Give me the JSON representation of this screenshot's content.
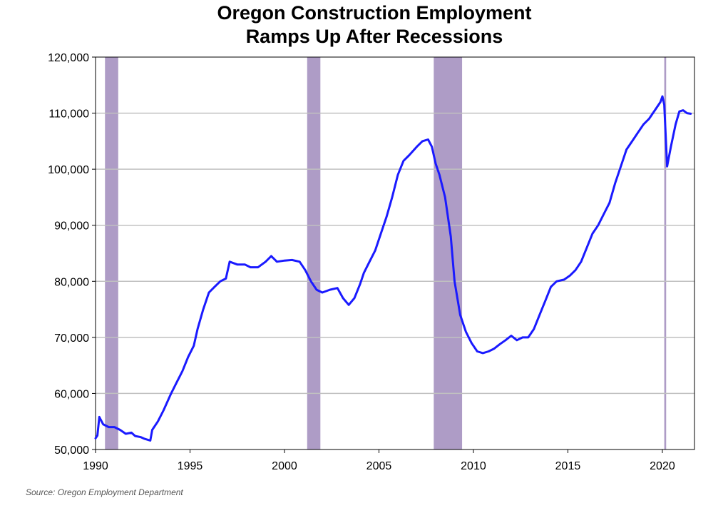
{
  "title_lines": [
    "Oregon Construction Employment",
    "Ramps Up After Recessions"
  ],
  "source": "Source: Oregon Employment Department",
  "colors": {
    "line": "#1a1aff",
    "recession": "#ae9cc6",
    "grid": "#c0c0c0",
    "axis": "#000000"
  },
  "chart_data": {
    "type": "line",
    "title": "Oregon Construction Employment Ramps Up After Recessions",
    "xlabel": "",
    "ylabel": "",
    "xlim": [
      1990,
      2021.7
    ],
    "ylim": [
      50000,
      120000
    ],
    "grid": true,
    "legend": "none",
    "x_ticks": [
      1990,
      1995,
      2000,
      2005,
      2010,
      2015,
      2020
    ],
    "x_tick_labels": [
      "1990",
      "1995",
      "2000",
      "2005",
      "2010",
      "2015",
      "2020"
    ],
    "y_ticks": [
      50000,
      60000,
      70000,
      80000,
      90000,
      100000,
      110000,
      120000
    ],
    "y_tick_labels": [
      "50,000",
      "60,000",
      "70,000",
      "80,000",
      "90,000",
      "100,000",
      "110,000",
      "120,000"
    ],
    "recessions": [
      [
        1990.5,
        1991.2
      ],
      [
        2001.2,
        2001.9
      ],
      [
        2007.9,
        2009.4
      ],
      [
        2020.1,
        2020.2
      ]
    ],
    "series": [
      {
        "points": [
          [
            1990.0,
            52000
          ],
          [
            1990.1,
            52500
          ],
          [
            1990.2,
            55800
          ],
          [
            1990.4,
            54500
          ],
          [
            1990.7,
            54000
          ],
          [
            1991.0,
            54000
          ],
          [
            1991.3,
            53500
          ],
          [
            1991.6,
            52800
          ],
          [
            1991.9,
            53000
          ],
          [
            1992.1,
            52400
          ],
          [
            1992.4,
            52200
          ],
          [
            1992.6,
            51900
          ],
          [
            1992.9,
            51600
          ],
          [
            1993.0,
            53500
          ],
          [
            1993.3,
            55000
          ],
          [
            1993.6,
            57000
          ],
          [
            1994.0,
            60000
          ],
          [
            1994.3,
            62000
          ],
          [
            1994.6,
            64000
          ],
          [
            1994.9,
            66500
          ],
          [
            1995.2,
            68500
          ],
          [
            1995.4,
            71500
          ],
          [
            1995.7,
            75000
          ],
          [
            1996.0,
            78000
          ],
          [
            1996.3,
            79000
          ],
          [
            1996.6,
            80000
          ],
          [
            1996.9,
            80500
          ],
          [
            1997.1,
            83500
          ],
          [
            1997.5,
            83000
          ],
          [
            1997.9,
            83000
          ],
          [
            1998.2,
            82500
          ],
          [
            1998.6,
            82500
          ],
          [
            1999.0,
            83500
          ],
          [
            1999.3,
            84500
          ],
          [
            1999.6,
            83500
          ],
          [
            2000.0,
            83700
          ],
          [
            2000.4,
            83800
          ],
          [
            2000.8,
            83500
          ],
          [
            2001.1,
            82000
          ],
          [
            2001.4,
            80000
          ],
          [
            2001.7,
            78500
          ],
          [
            2002.0,
            78000
          ],
          [
            2002.4,
            78500
          ],
          [
            2002.8,
            78800
          ],
          [
            2003.1,
            77000
          ],
          [
            2003.4,
            75800
          ],
          [
            2003.7,
            77000
          ],
          [
            2004.0,
            79500
          ],
          [
            2004.2,
            81500
          ],
          [
            2004.5,
            83500
          ],
          [
            2004.8,
            85500
          ],
          [
            2005.1,
            88500
          ],
          [
            2005.4,
            91500
          ],
          [
            2005.7,
            95000
          ],
          [
            2006.0,
            99000
          ],
          [
            2006.3,
            101500
          ],
          [
            2006.6,
            102500
          ],
          [
            2007.0,
            104000
          ],
          [
            2007.3,
            105000
          ],
          [
            2007.6,
            105300
          ],
          [
            2007.8,
            104000
          ],
          [
            2008.0,
            101000
          ],
          [
            2008.2,
            99000
          ],
          [
            2008.5,
            95000
          ],
          [
            2008.8,
            88000
          ],
          [
            2009.0,
            80000
          ],
          [
            2009.3,
            74000
          ],
          [
            2009.6,
            71000
          ],
          [
            2009.9,
            69000
          ],
          [
            2010.2,
            67500
          ],
          [
            2010.5,
            67200
          ],
          [
            2010.8,
            67500
          ],
          [
            2011.1,
            68000
          ],
          [
            2011.4,
            68800
          ],
          [
            2011.7,
            69500
          ],
          [
            2012.0,
            70300
          ],
          [
            2012.3,
            69500
          ],
          [
            2012.6,
            70000
          ],
          [
            2012.9,
            70000
          ],
          [
            2013.2,
            71500
          ],
          [
            2013.5,
            74000
          ],
          [
            2013.8,
            76500
          ],
          [
            2014.1,
            79000
          ],
          [
            2014.4,
            80000
          ],
          [
            2014.8,
            80300
          ],
          [
            2015.1,
            81000
          ],
          [
            2015.4,
            82000
          ],
          [
            2015.7,
            83500
          ],
          [
            2016.0,
            86000
          ],
          [
            2016.3,
            88500
          ],
          [
            2016.6,
            90000
          ],
          [
            2016.9,
            92000
          ],
          [
            2017.2,
            94000
          ],
          [
            2017.5,
            97500
          ],
          [
            2017.8,
            100500
          ],
          [
            2018.1,
            103500
          ],
          [
            2018.4,
            105000
          ],
          [
            2018.7,
            106500
          ],
          [
            2019.0,
            108000
          ],
          [
            2019.3,
            109000
          ],
          [
            2019.6,
            110500
          ],
          [
            2019.9,
            112000
          ],
          [
            2020.0,
            113000
          ],
          [
            2020.1,
            111500
          ],
          [
            2020.25,
            100500
          ],
          [
            2020.45,
            104000
          ],
          [
            2020.7,
            108000
          ],
          [
            2020.9,
            110300
          ],
          [
            2021.1,
            110500
          ],
          [
            2021.3,
            110000
          ],
          [
            2021.5,
            109900
          ]
        ]
      }
    ]
  }
}
